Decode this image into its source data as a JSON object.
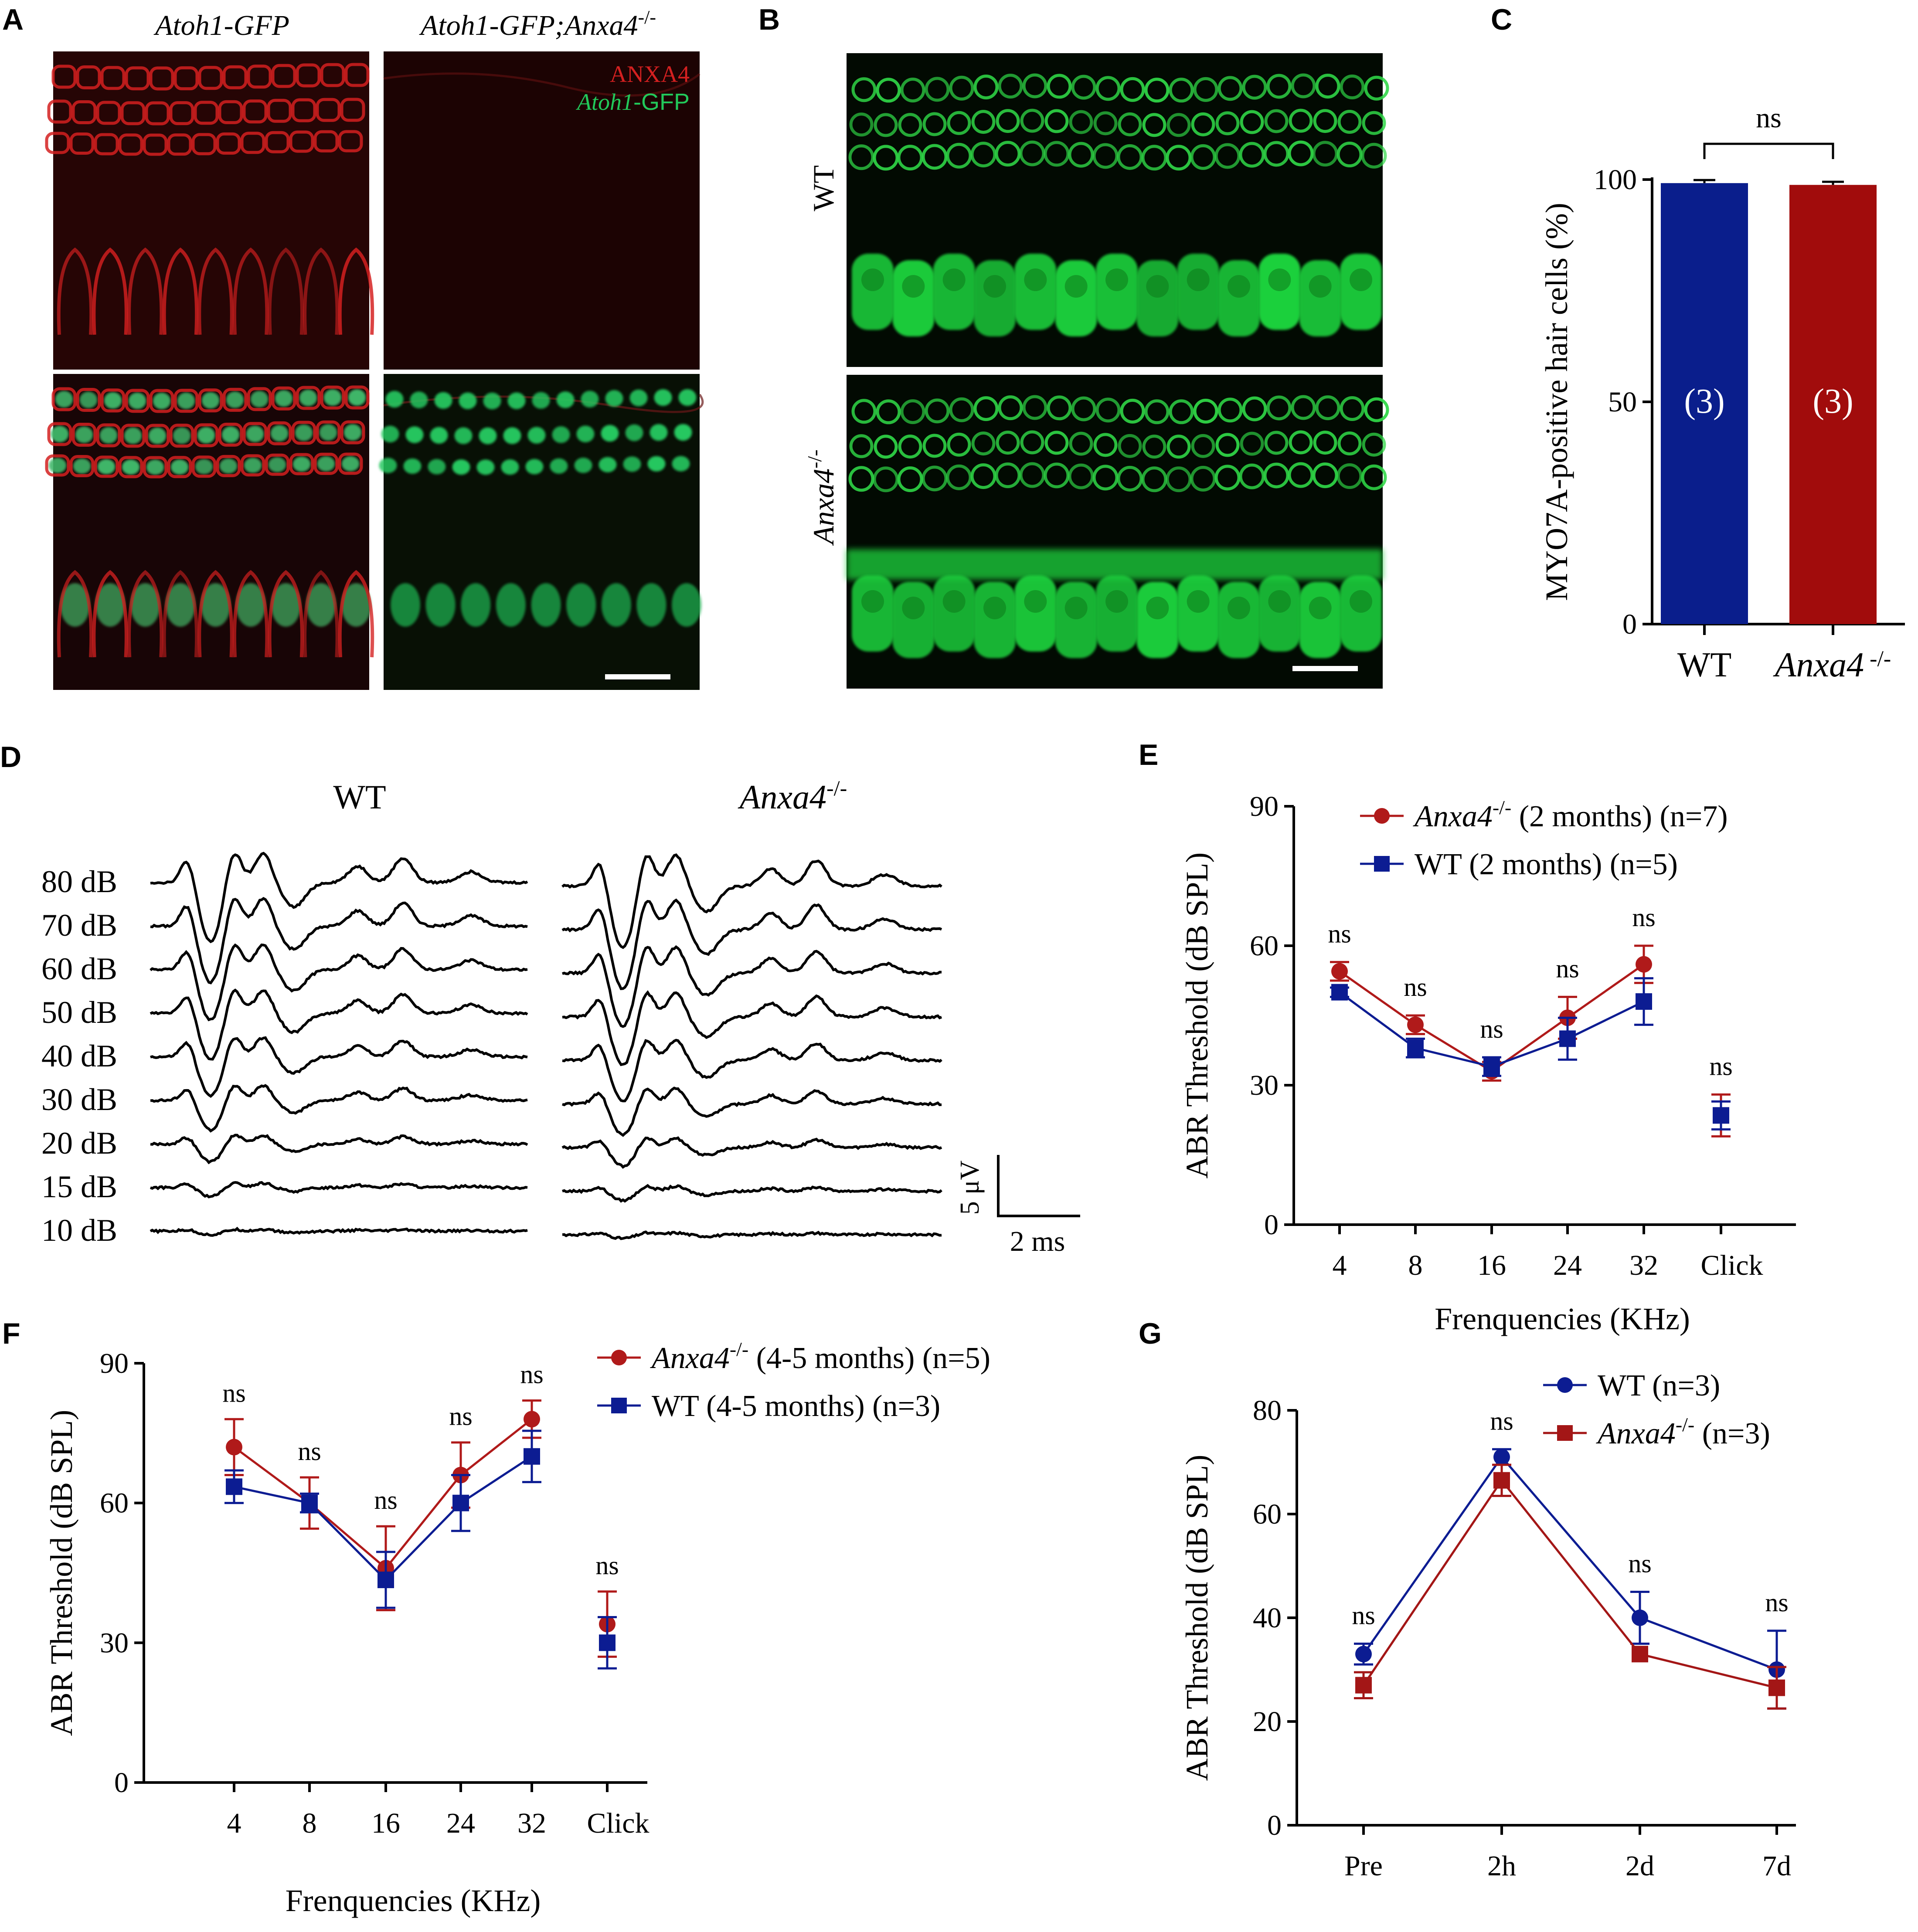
{
  "panels": {
    "A": {
      "label": "A",
      "col1_title": "Atoh1-GFP",
      "col2_title": "Atoh1-GFP;Anxa4",
      "col2_title_sup": "-/-",
      "legend_anxa4": "ANXA4",
      "legend_gfp_italic": "Atoh1",
      "legend_gfp_rest": "-GFP",
      "colors": {
        "red": "#d42020",
        "green": "#22c85a"
      }
    },
    "B": {
      "label": "B",
      "row1": "WT",
      "row2": "Anxa4",
      "row2_sup": "-/-"
    },
    "D": {
      "label": "D",
      "title_wt": "WT",
      "title_ko": "Anxa4",
      "title_ko_sup": "-/-",
      "levels": [
        "80 dB",
        "70 dB",
        "60 dB",
        "50 dB",
        "40 dB",
        "30 dB",
        "20 dB",
        "15 dB",
        "10 dB"
      ],
      "amplitudes": [
        1.0,
        0.95,
        0.85,
        0.78,
        0.66,
        0.5,
        0.3,
        0.15,
        0.06
      ],
      "scale_v": "5 μV",
      "scale_t": "2 ms"
    }
  },
  "chart_data": [
    {
      "id": "C",
      "label": "C",
      "type": "bar",
      "categories": [
        "WT",
        "Anxa4-/-"
      ],
      "category_labels": [
        {
          "text": "WT",
          "sup": ""
        },
        {
          "text": "Anxa4",
          "sup": " -/-"
        }
      ],
      "values": [
        99.2,
        98.8
      ],
      "errors": [
        0.4,
        0.4
      ],
      "n_labels": [
        "(3)",
        "(3)"
      ],
      "colors": [
        "#0a1e8c",
        "#a10c0c"
      ],
      "ylabel": "MYO7A-positive hair cells (%)",
      "ylim": [
        0,
        100
      ],
      "yticks": [
        0,
        50,
        100
      ],
      "significance": "ns"
    },
    {
      "id": "E",
      "label": "E",
      "type": "line",
      "categories": [
        "4",
        "8",
        "16",
        "24",
        "32",
        "Click"
      ],
      "ylabel": "ABR Threshold (dB SPL)",
      "xlabel": "Frenquencies (KHz)",
      "ylim": [
        0,
        90
      ],
      "yticks": [
        0,
        30,
        60,
        90
      ],
      "series": [
        {
          "name": "Anxa4",
          "sup": "-/-",
          "suffix": " (2 months) (n=7)",
          "marker": "circle",
          "color": "#b01a1a",
          "values": [
            54.5,
            43,
            33,
            44.5,
            56,
            23.5
          ],
          "errors": [
            2,
            2,
            2,
            4.5,
            4,
            4.5
          ]
        },
        {
          "name": "WT",
          "sup": "",
          "suffix": " (2 months)  (n=5)",
          "marker": "square",
          "color": "#0c1c92",
          "values": [
            50,
            38,
            34,
            40,
            48,
            23.5
          ],
          "errors": [
            1,
            2,
            2,
            4.5,
            5,
            3
          ]
        }
      ],
      "ns_labels": [
        "ns",
        "ns",
        "ns",
        "ns",
        "ns",
        "ns"
      ]
    },
    {
      "id": "F",
      "label": "F",
      "type": "line",
      "categories": [
        "4",
        "8",
        "16",
        "24",
        "32",
        "Click"
      ],
      "ylabel": "ABR Threshold (dB SPL)",
      "xlabel": "Frenquencies (KHz)",
      "ylim": [
        0,
        90
      ],
      "yticks": [
        0,
        30,
        60,
        90
      ],
      "series": [
        {
          "name": "Anxa4",
          "sup": "-/-",
          "suffix": "  (4-5 months) (n=5)",
          "marker": "circle",
          "color": "#b01a1a",
          "values": [
            72,
            60,
            46,
            66,
            78,
            34
          ],
          "errors": [
            6,
            5.5,
            9,
            7,
            4,
            7
          ]
        },
        {
          "name": "WT",
          "sup": "",
          "suffix": "  (4-5 months) (n=3)",
          "marker": "square",
          "color": "#0c1c92",
          "values": [
            63.5,
            60,
            43.5,
            60,
            70,
            30
          ],
          "errors": [
            3.5,
            2,
            6,
            6,
            5.5,
            5.5
          ]
        }
      ],
      "ns_labels": [
        "ns",
        "ns",
        "ns",
        "ns",
        "ns",
        "ns"
      ]
    },
    {
      "id": "G",
      "label": "G",
      "type": "line",
      "categories": [
        "Pre",
        "2h",
        "2d",
        "7d"
      ],
      "ylabel": "ABR Threshold (dB SPL)",
      "xlabel": "",
      "ylim": [
        0,
        80
      ],
      "yticks": [
        0,
        20,
        40,
        60,
        80
      ],
      "series": [
        {
          "name": "WT",
          "sup": "",
          "suffix": " (n=3)",
          "marker": "circle",
          "color": "#0c1c92",
          "values": [
            33,
            71,
            40,
            30
          ],
          "errors": [
            2,
            1.5,
            5,
            7.5
          ]
        },
        {
          "name": "Anxa4",
          "sup": "-/-",
          "suffix": " (n=3)",
          "marker": "square",
          "color": "#a31616",
          "values": [
            27,
            66.5,
            33,
            26.5
          ],
          "errors": [
            2.5,
            3,
            0,
            4
          ]
        }
      ],
      "ns_labels": [
        "ns",
        "ns",
        "ns",
        "ns"
      ]
    }
  ]
}
